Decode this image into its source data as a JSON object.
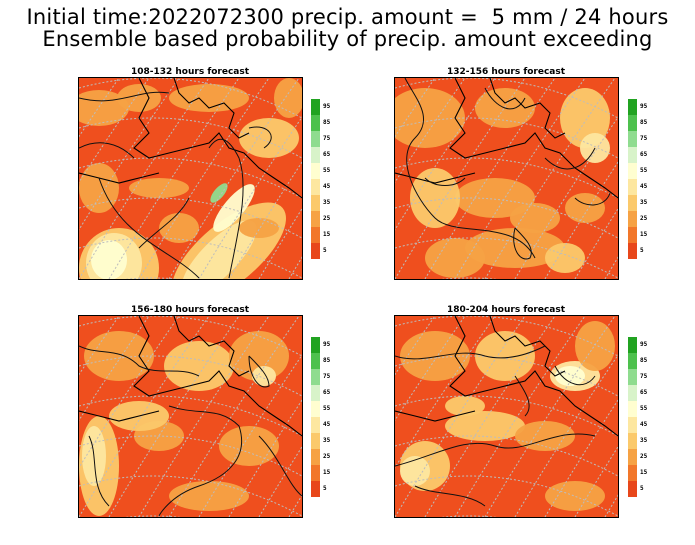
{
  "header": {
    "line1": "Initial time:2022072300 precip. amount =  5 mm / 24 hours",
    "line2": "Ensemble based probability of precip. amount exceeding"
  },
  "panels": [
    {
      "title": "108-132 hours forecast"
    },
    {
      "title": "132-156 hours forecast"
    },
    {
      "title": "156-180 hours forecast"
    },
    {
      "title": "180-204 hours forecast"
    }
  ],
  "colorbar": {
    "labels": [
      "95",
      "85",
      "75",
      "65",
      "55",
      "45",
      "35",
      "25",
      "15",
      "5"
    ],
    "colors": [
      "#21a321",
      "#4dc14d",
      "#8fdc8f",
      "#d8f3c9",
      "#fffed0",
      "#fde7a0",
      "#fbc96b",
      "#f6a244",
      "#f2772a",
      "#e8471b"
    ]
  },
  "colors": {
    "water": "#ef4f1e",
    "land_base": "#f27a2b"
  }
}
